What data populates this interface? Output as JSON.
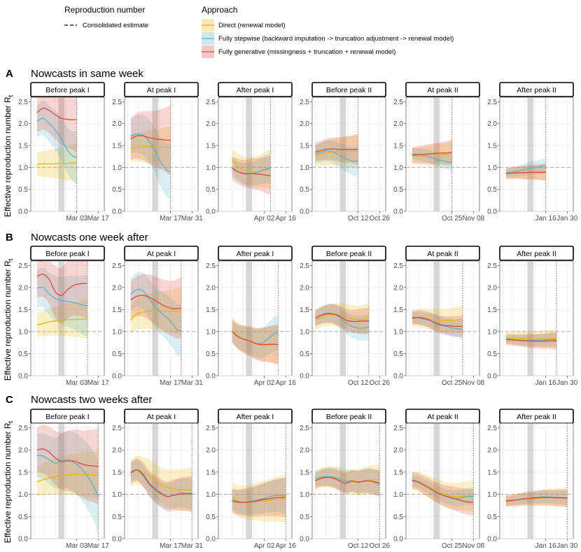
{
  "legend": {
    "repro_title": "Reproduction number",
    "consolidated_label": "Consolidated estimate",
    "approach_title": "Approach",
    "approaches": [
      {
        "key": "direct",
        "label": "Direct (renewal model)",
        "color": "#E7B800"
      },
      {
        "key": "stepwise",
        "label": "Fully stepwise (backward imputation -> truncation adjustment -> renewal model)",
        "color": "#56B4C9"
      },
      {
        "key": "generative",
        "label": "Fully generative (missingness + truncation + renewal model)",
        "color": "#E1453A"
      }
    ]
  },
  "y_axis_label": "Effective reproduction number",
  "y_axis_symbol": "R",
  "y_axis_subscript": "t",
  "rows": [
    {
      "letter": "A",
      "title": "Nowcasts in same week"
    },
    {
      "letter": "B",
      "title": "Nowcasts one week after"
    },
    {
      "letter": "C",
      "title": "Nowcasts two weeks after"
    }
  ],
  "columns": [
    {
      "strip": "Before peak I",
      "ticks": [
        "Mar 03",
        "Mar 17"
      ]
    },
    {
      "strip": "At peak I",
      "ticks": [
        "Mar 17",
        "Mar 31"
      ]
    },
    {
      "strip": "After peak I",
      "ticks": [
        "Apr 02",
        "Apr 16"
      ]
    },
    {
      "strip": "Before peak II",
      "ticks": [
        "Oct 12",
        "Oct 26"
      ]
    },
    {
      "strip": "At peak II",
      "ticks": [
        "Oct 25",
        "Nov 08"
      ]
    },
    {
      "strip": "After peak II",
      "ticks": [
        "Jan 16",
        "Jan 30"
      ]
    }
  ],
  "chart_data": {
    "type": "line",
    "ylim": [
      0,
      2.6
    ],
    "yticks": [
      0.0,
      0.5,
      1.0,
      1.5,
      2.0,
      2.5
    ],
    "reference_line": 1.0,
    "grid": true,
    "x_unit": "days relative to first labelled tick",
    "panels": [
      {
        "row": 0,
        "col": 0,
        "x": [
          -26,
          -22,
          -18,
          -14,
          -10,
          -7,
          -4,
          -2,
          0
        ],
        "series": {
          "direct": [
            1.07,
            1.08,
            1.08,
            1.09,
            1.09,
            1.09,
            1.1,
            1.1,
            1.1
          ],
          "stepwise": [
            2.05,
            2.12,
            2.0,
            1.85,
            1.65,
            1.45,
            1.3,
            1.25,
            1.22
          ],
          "generative": [
            2.25,
            2.35,
            2.3,
            2.2,
            2.12,
            2.1,
            2.09,
            2.09,
            2.09
          ]
        },
        "band": {
          "direct": 0.45,
          "stepwise": 0.6,
          "generative": 0.75
        }
      },
      {
        "row": 0,
        "col": 1,
        "x": [
          -26,
          -22,
          -18,
          -14,
          -10,
          -7,
          -4,
          -2,
          0
        ],
        "series": {
          "direct": [
            1.43,
            1.46,
            1.47,
            1.47,
            1.46,
            1.46,
            1.46,
            1.45,
            1.45
          ],
          "stepwise": [
            1.72,
            1.76,
            1.74,
            1.6,
            1.38,
            1.15,
            1.0,
            0.93,
            0.9
          ],
          "generative": [
            1.65,
            1.72,
            1.72,
            1.68,
            1.65,
            1.64,
            1.63,
            1.62,
            1.62
          ]
        },
        "band": {
          "direct": 0.5,
          "stepwise": 0.65,
          "generative": 0.8
        }
      },
      {
        "row": 0,
        "col": 2,
        "x": [
          -21,
          -17,
          -13,
          -9,
          -5,
          -2,
          0,
          2,
          4
        ],
        "series": {
          "direct": [
            1.16,
            1.02,
            0.93,
            0.9,
            0.9,
            0.92,
            0.94,
            0.95,
            0.96
          ],
          "stepwise": [
            1.0,
            0.9,
            0.85,
            0.86,
            0.88,
            0.92,
            0.95,
            0.97,
            1.0
          ],
          "generative": [
            0.98,
            0.9,
            0.86,
            0.86,
            0.85,
            0.84,
            0.83,
            0.82,
            0.82
          ]
        },
        "band": {
          "direct": 0.45,
          "stepwise": 0.35,
          "generative": 0.45
        }
      },
      {
        "row": 0,
        "col": 3,
        "x": [
          -28,
          -24,
          -20,
          -16,
          -12,
          -8,
          -4,
          -2,
          0
        ],
        "series": {
          "direct": [
            1.25,
            1.3,
            1.33,
            1.35,
            1.36,
            1.36,
            1.37,
            1.37,
            1.37
          ],
          "stepwise": [
            1.3,
            1.35,
            1.38,
            1.35,
            1.27,
            1.2,
            1.15,
            1.14,
            1.15
          ],
          "generative": [
            1.35,
            1.39,
            1.42,
            1.42,
            1.41,
            1.41,
            1.41,
            1.41,
            1.41
          ]
        },
        "band": {
          "direct": 0.4,
          "stepwise": 0.35,
          "generative": 0.35
        }
      },
      {
        "row": 0,
        "col": 4,
        "x": [
          -26,
          -22,
          -18,
          -14,
          -10,
          -6,
          -3,
          -1,
          0
        ],
        "series": {
          "direct": [
            1.27,
            1.26,
            1.26,
            1.27,
            1.28,
            1.29,
            1.3,
            1.31,
            1.32
          ],
          "stepwise": [
            1.31,
            1.3,
            1.28,
            1.23,
            1.18,
            1.15,
            1.13,
            1.12,
            1.12
          ],
          "generative": [
            1.28,
            1.29,
            1.3,
            1.31,
            1.32,
            1.33,
            1.33,
            1.34,
            1.34
          ]
        },
        "band": {
          "direct": 0.3,
          "stepwise": 0.2,
          "generative": 0.3
        }
      },
      {
        "row": 0,
        "col": 5,
        "x": [
          -26,
          -22,
          -18,
          -14,
          -10,
          -6,
          -3,
          -1,
          0
        ],
        "series": {
          "direct": [
            0.85,
            0.87,
            0.88,
            0.88,
            0.89,
            0.89,
            0.89,
            0.89,
            0.89
          ],
          "stepwise": [
            0.87,
            0.9,
            0.92,
            0.95,
            0.98,
            1.0,
            1.02,
            1.03,
            1.03
          ],
          "generative": [
            0.86,
            0.87,
            0.88,
            0.88,
            0.89,
            0.89,
            0.89,
            0.89,
            0.89
          ]
        },
        "band": {
          "direct": 0.2,
          "stepwise": 0.18,
          "generative": 0.2
        }
      },
      {
        "row": 1,
        "col": 0,
        "x": [
          -26,
          -22,
          -18,
          -14,
          -10,
          -6,
          -2,
          2,
          4,
          7
        ],
        "series": {
          "direct": [
            1.15,
            1.18,
            1.22,
            1.24,
            1.26,
            1.27,
            1.27,
            1.28,
            1.28,
            1.28
          ],
          "stepwise": [
            1.98,
            2.0,
            1.85,
            1.75,
            1.7,
            1.68,
            1.66,
            1.62,
            1.6,
            1.58
          ],
          "generative": [
            2.25,
            2.3,
            2.18,
            1.9,
            1.82,
            1.95,
            2.05,
            2.08,
            2.09,
            2.09
          ]
        },
        "band": {
          "direct": 0.45,
          "stepwise": 0.7,
          "generative": 0.8
        }
      },
      {
        "row": 1,
        "col": 1,
        "x": [
          -26,
          -22,
          -18,
          -14,
          -10,
          -6,
          -2,
          2,
          4,
          7
        ],
        "series": {
          "direct": [
            1.25,
            1.4,
            1.44,
            1.46,
            1.46,
            1.46,
            1.46,
            1.46,
            1.46,
            1.46
          ],
          "stepwise": [
            1.85,
            1.95,
            1.92,
            1.75,
            1.55,
            1.42,
            1.3,
            1.15,
            1.05,
            1.02
          ],
          "generative": [
            1.72,
            1.8,
            1.82,
            1.78,
            1.7,
            1.62,
            1.55,
            1.52,
            1.52,
            1.53
          ]
        },
        "band": {
          "direct": 0.55,
          "stepwise": 0.6,
          "generative": 0.7
        }
      },
      {
        "row": 1,
        "col": 2,
        "x": [
          -21,
          -17,
          -13,
          -9,
          -5,
          -1,
          3,
          6,
          9
        ],
        "series": {
          "direct": [
            1.05,
            0.9,
            0.82,
            0.76,
            0.73,
            0.72,
            0.72,
            0.71,
            0.71
          ],
          "stepwise": [
            1.0,
            0.88,
            0.82,
            0.78,
            0.73,
            0.75,
            0.85,
            0.94,
            0.97
          ],
          "generative": [
            1.0,
            0.88,
            0.82,
            0.78,
            0.72,
            0.7,
            0.71,
            0.71,
            0.71
          ]
        },
        "band": {
          "direct": 0.45,
          "stepwise": 0.4,
          "generative": 0.45
        }
      },
      {
        "row": 1,
        "col": 3,
        "x": [
          -28,
          -24,
          -20,
          -16,
          -12,
          -8,
          -4,
          0,
          4,
          7
        ],
        "series": {
          "direct": [
            1.25,
            1.32,
            1.37,
            1.38,
            1.37,
            1.34,
            1.3,
            1.27,
            1.28,
            1.3
          ],
          "stepwise": [
            1.3,
            1.38,
            1.42,
            1.4,
            1.32,
            1.2,
            1.12,
            1.08,
            1.08,
            1.1
          ],
          "generative": [
            1.3,
            1.37,
            1.4,
            1.4,
            1.35,
            1.26,
            1.23,
            1.23,
            1.24,
            1.24
          ]
        },
        "band": {
          "direct": 0.35,
          "stepwise": 0.3,
          "generative": 0.3
        }
      },
      {
        "row": 1,
        "col": 4,
        "x": [
          -26,
          -22,
          -18,
          -14,
          -10,
          -6,
          -2,
          2,
          5,
          7
        ],
        "series": {
          "direct": [
            1.3,
            1.31,
            1.3,
            1.28,
            1.26,
            1.25,
            1.25,
            1.26,
            1.27,
            1.28
          ],
          "stepwise": [
            1.33,
            1.31,
            1.28,
            1.25,
            1.2,
            1.15,
            1.1,
            1.07,
            1.06,
            1.05
          ],
          "generative": [
            1.3,
            1.32,
            1.3,
            1.25,
            1.18,
            1.14,
            1.13,
            1.12,
            1.12,
            1.12
          ]
        },
        "band": {
          "direct": 0.32,
          "stepwise": 0.22,
          "generative": 0.25
        }
      },
      {
        "row": 1,
        "col": 5,
        "x": [
          -26,
          -22,
          -18,
          -14,
          -10,
          -6,
          -2,
          2,
          5,
          7
        ],
        "series": {
          "direct": [
            0.85,
            0.85,
            0.84,
            0.84,
            0.83,
            0.83,
            0.83,
            0.84,
            0.84,
            0.84
          ],
          "stepwise": [
            0.83,
            0.82,
            0.81,
            0.8,
            0.8,
            0.8,
            0.81,
            0.82,
            0.82,
            0.82
          ],
          "generative": [
            0.82,
            0.81,
            0.8,
            0.79,
            0.79,
            0.78,
            0.78,
            0.79,
            0.79,
            0.79
          ]
        },
        "band": {
          "direct": 0.22,
          "stepwise": 0.16,
          "generative": 0.2
        }
      },
      {
        "row": 2,
        "col": 0,
        "x": [
          -26,
          -22,
          -18,
          -14,
          -10,
          -6,
          -2,
          2,
          6,
          10,
          14
        ],
        "series": {
          "direct": [
            1.28,
            1.33,
            1.37,
            1.4,
            1.42,
            1.44,
            1.45,
            1.45,
            1.45,
            1.44,
            1.43
          ],
          "stepwise": [
            1.88,
            1.86,
            1.78,
            1.7,
            1.75,
            1.78,
            1.72,
            1.62,
            1.45,
            1.25,
            0.95
          ],
          "generative": [
            2.0,
            2.02,
            1.95,
            1.82,
            1.74,
            1.75,
            1.75,
            1.7,
            1.66,
            1.64,
            1.63
          ]
        },
        "band": {
          "direct": 0.55,
          "stepwise": 0.8,
          "generative": 0.85
        }
      },
      {
        "row": 2,
        "col": 1,
        "x": [
          -26,
          -22,
          -18,
          -14,
          -10,
          -6,
          -2,
          2,
          6,
          10,
          14
        ],
        "series": {
          "direct": [
            1.48,
            1.55,
            1.5,
            1.42,
            1.3,
            1.2,
            1.15,
            1.12,
            1.1,
            1.1,
            1.1
          ],
          "stepwise": [
            1.5,
            1.55,
            1.42,
            1.22,
            1.1,
            1.0,
            0.95,
            0.98,
            1.03,
            1.02,
            1.0
          ],
          "generative": [
            1.48,
            1.55,
            1.45,
            1.25,
            1.12,
            1.02,
            0.95,
            0.98,
            1.0,
            1.01,
            1.02
          ]
        },
        "band": {
          "direct": 0.5,
          "stepwise": 0.35,
          "generative": 0.4
        }
      },
      {
        "row": 2,
        "col": 2,
        "x": [
          -21,
          -17,
          -13,
          -9,
          -5,
          -1,
          3,
          7,
          11,
          14
        ],
        "series": {
          "direct": [
            0.95,
            0.85,
            0.82,
            0.82,
            0.84,
            0.85,
            0.86,
            0.88,
            0.9,
            0.91
          ],
          "stepwise": [
            0.88,
            0.83,
            0.82,
            0.84,
            0.87,
            0.9,
            0.94,
            0.97,
            0.97,
            0.97
          ],
          "generative": [
            0.85,
            0.82,
            0.82,
            0.83,
            0.85,
            0.88,
            0.9,
            0.92,
            0.93,
            0.93
          ]
        },
        "band": {
          "direct": 0.55,
          "stepwise": 0.4,
          "generative": 0.45
        }
      },
      {
        "row": 2,
        "col": 3,
        "x": [
          -28,
          -24,
          -20,
          -16,
          -12,
          -8,
          -4,
          0,
          4,
          8,
          12,
          14
        ],
        "series": {
          "direct": [
            1.32,
            1.38,
            1.4,
            1.38,
            1.35,
            1.3,
            1.28,
            1.27,
            1.3,
            1.32,
            1.33,
            1.34
          ],
          "stepwise": [
            1.35,
            1.38,
            1.4,
            1.38,
            1.34,
            1.3,
            1.3,
            1.28,
            1.3,
            1.3,
            1.25,
            1.22
          ],
          "generative": [
            1.3,
            1.36,
            1.38,
            1.36,
            1.3,
            1.25,
            1.3,
            1.27,
            1.3,
            1.3,
            1.27,
            1.26
          ]
        },
        "band": {
          "direct": 0.35,
          "stepwise": 0.3,
          "generative": 0.3
        }
      },
      {
        "row": 2,
        "col": 4,
        "x": [
          -26,
          -22,
          -18,
          -14,
          -10,
          -6,
          -2,
          2,
          6,
          10,
          14
        ],
        "series": {
          "direct": [
            1.3,
            1.28,
            1.22,
            1.15,
            1.08,
            1.02,
            0.97,
            0.95,
            0.95,
            0.96,
            0.96
          ],
          "stepwise": [
            1.3,
            1.27,
            1.2,
            1.13,
            1.05,
            0.98,
            0.93,
            0.9,
            0.92,
            0.95,
            0.95
          ],
          "generative": [
            1.32,
            1.28,
            1.2,
            1.12,
            1.04,
            0.98,
            0.94,
            0.9,
            0.86,
            0.83,
            0.82
          ]
        },
        "band": {
          "direct": 0.35,
          "stepwise": 0.2,
          "generative": 0.3
        }
      },
      {
        "row": 2,
        "col": 5,
        "x": [
          -26,
          -22,
          -18,
          -14,
          -10,
          -6,
          -2,
          2,
          6,
          10,
          14
        ],
        "series": {
          "direct": [
            0.86,
            0.87,
            0.88,
            0.89,
            0.9,
            0.91,
            0.92,
            0.93,
            0.93,
            0.93,
            0.93
          ],
          "stepwise": [
            0.84,
            0.86,
            0.88,
            0.9,
            0.92,
            0.93,
            0.94,
            0.94,
            0.93,
            0.93,
            0.92
          ],
          "generative": [
            0.85,
            0.86,
            0.88,
            0.9,
            0.91,
            0.92,
            0.93,
            0.93,
            0.92,
            0.92,
            0.91
          ]
        },
        "band": {
          "direct": 0.22,
          "stepwise": 0.16,
          "generative": 0.2
        }
      }
    ]
  }
}
